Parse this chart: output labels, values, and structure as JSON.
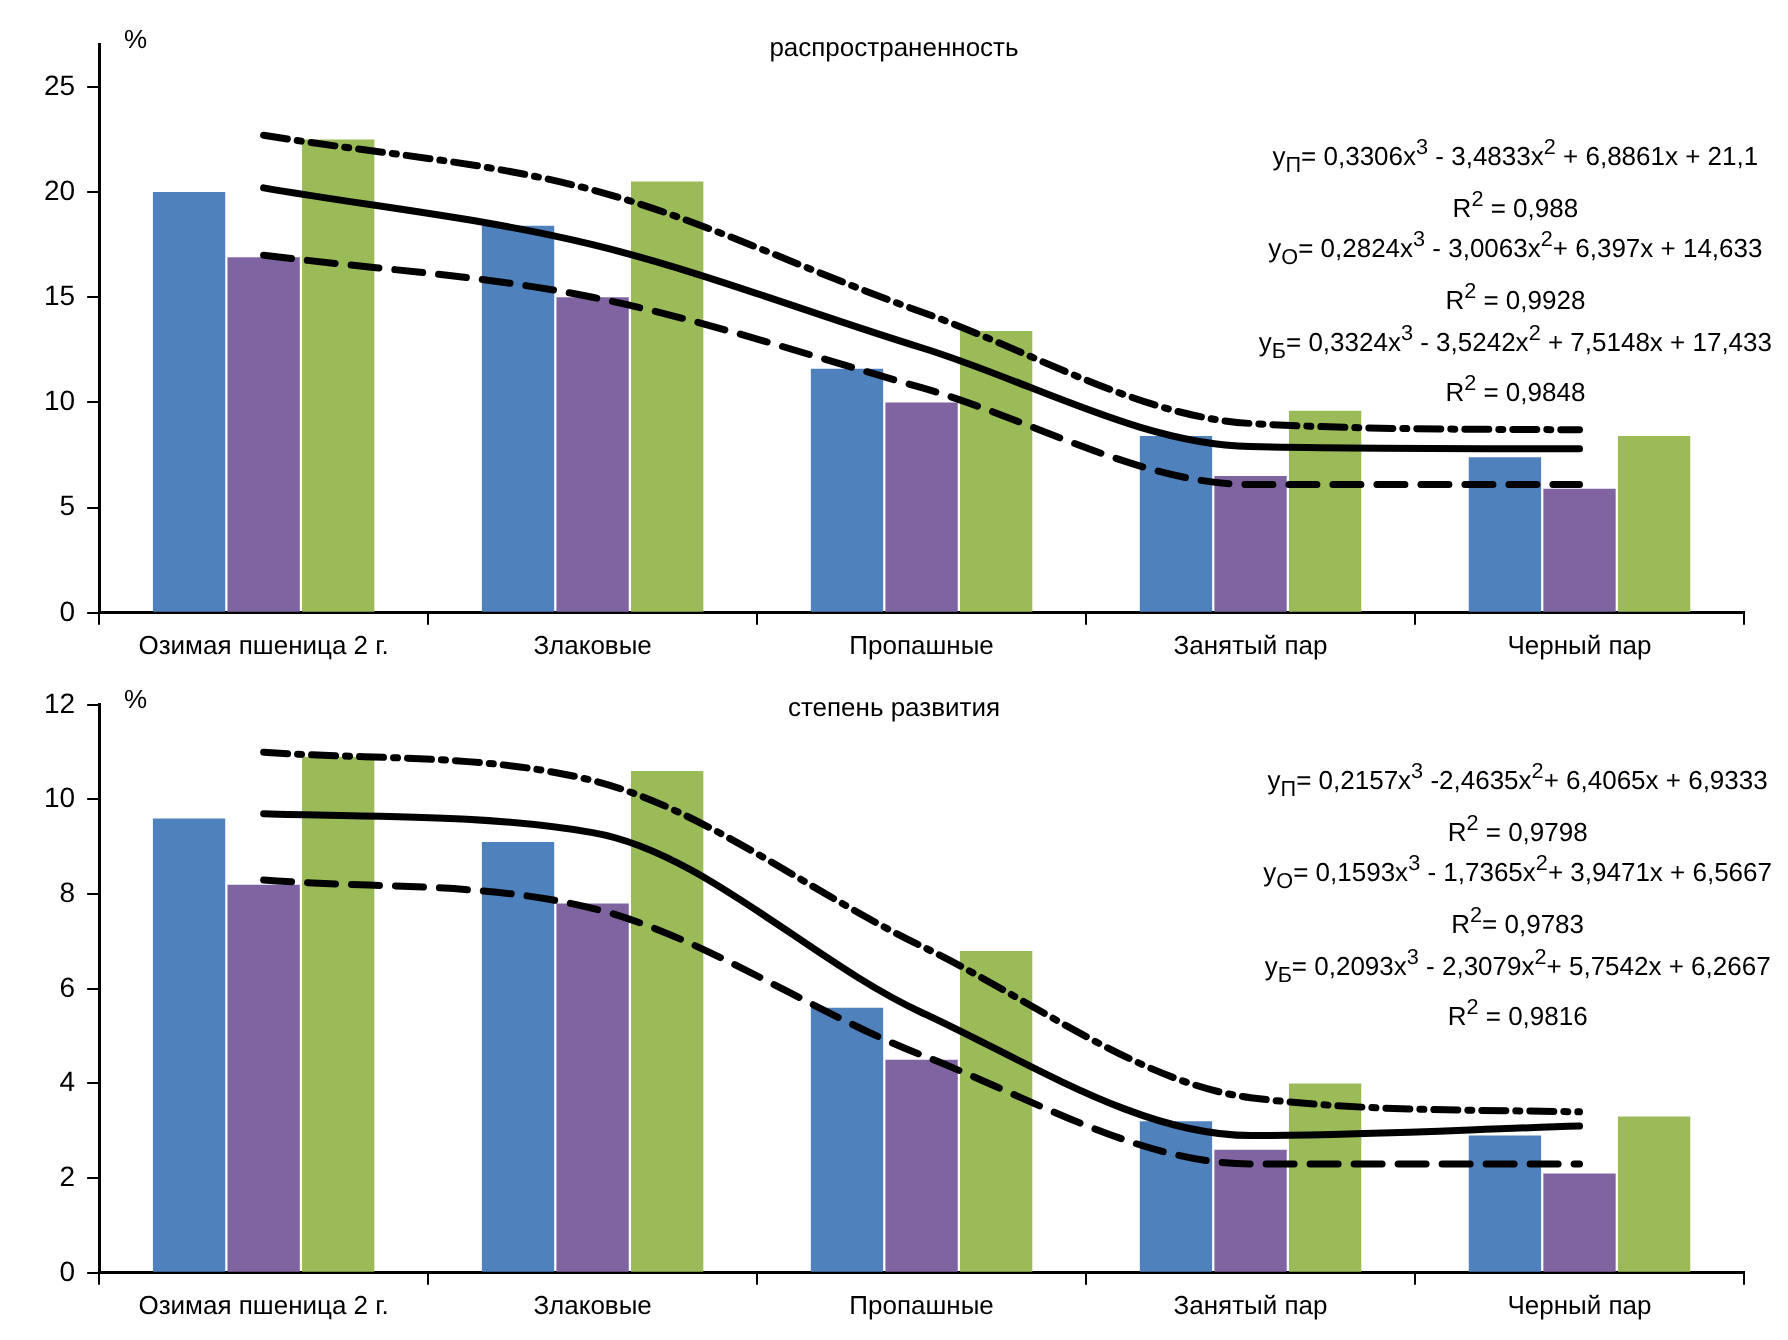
{
  "chart_data": [
    {
      "type": "bar",
      "title": "распространенность",
      "ylabel": "%",
      "categories": [
        "Озимая пшеница 2 г.",
        "Злаковые",
        "Пропашные",
        "Занятый пар",
        "Черный пар"
      ],
      "series": [
        {
          "color": "#4f81bd",
          "values": [
            20,
            18.4,
            11.6,
            8.4,
            7.4
          ]
        },
        {
          "color": "#8064a2",
          "values": [
            16.9,
            15,
            10,
            6.5,
            5.9
          ]
        },
        {
          "color": "#9bbb59",
          "values": [
            22.5,
            20.5,
            13.4,
            9.6,
            8.4
          ]
        },
        {
          "type": "line",
          "color": "#000000",
          "line_style": "solid",
          "values": [
            20.2,
            17.5,
            12.6,
            7.9,
            7.8
          ]
        },
        {
          "type": "line",
          "color": "#000000",
          "line_style": "dashed",
          "values": [
            17,
            15,
            10.7,
            6.1,
            6.1
          ]
        },
        {
          "type": "line",
          "color": "#000000",
          "line_style": "dashdot",
          "values": [
            22.7,
            20.1,
            14.3,
            9,
            8.7
          ]
        }
      ],
      "ylim": [
        0,
        27
      ],
      "yticks": [
        0,
        5,
        10,
        15,
        20,
        25
      ],
      "grid": false,
      "legend": false,
      "marker": "none",
      "annotations": [
        "y$_{П}$= 0,3306x$^{3}$ - 3,4833x$^{2}$ + 6,8861x + 21,1",
        "R$^{2}$ = 0,988",
        "y$_{О}$= 0,2824x$^{3}$ - 3,0063x$^{2}$+ 6,397x + 14,633",
        "R$^{2}$ = 0,9928",
        "y$_{Б}$= 0,3324x$^{3}$ - 3,5242x$^{2}$ + 7,5148x + 17,433",
        "R$^{2}$ = 0,9848"
      ]
    },
    {
      "type": "bar",
      "title": "степень развития",
      "ylabel": "%",
      "categories": [
        "Озимая пшеница 2 г.",
        "Злаковые",
        "Пропашные",
        "Занятый пар",
        "Черный пар"
      ],
      "series": [
        {
          "color": "#4f81bd",
          "values": [
            9.6,
            9.1,
            5.6,
            3.2,
            2.9
          ]
        },
        {
          "color": "#8064a2",
          "values": [
            8.2,
            7.8,
            4.5,
            2.6,
            2.1
          ]
        },
        {
          "color": "#9bbb59",
          "values": [
            10.9,
            10.6,
            6.8,
            4,
            3.3
          ]
        },
        {
          "type": "line",
          "color": "#000000",
          "line_style": "solid",
          "values": [
            9.7,
            9.3,
            5.5,
            2.9,
            3.1
          ]
        },
        {
          "type": "line",
          "color": "#000000",
          "line_style": "dashed",
          "values": [
            8.3,
            7.7,
            4.6,
            2.3,
            2.3
          ]
        },
        {
          "type": "line",
          "color": "#000000",
          "line_style": "dashdot",
          "values": [
            11,
            10.4,
            6.9,
            3.7,
            3.4
          ]
        }
      ],
      "ylim": [
        0,
        12
      ],
      "yticks": [
        0,
        2,
        4,
        6,
        8,
        10,
        12
      ],
      "grid": false,
      "legend": false,
      "marker": "none",
      "annotations": [
        "y$_{П}$= 0,2157x$^{3}$ -2,4635x$^{2}$+ 6,4065x + 6,9333",
        "R$^{2}$ = 0,9798",
        "y$_{О}$= 0,1593x$^{3}$ - 1,7365x$^{2}$+ 3,9471x + 6,5667",
        "R$^{2}$= 0,9783",
        "y$_{Б}$= 0,2093x$^{3}$ - 2,3079x$^{2}$+ 5,7542x + 6,2667",
        "R$^{2}$ = 0,9816"
      ]
    }
  ]
}
